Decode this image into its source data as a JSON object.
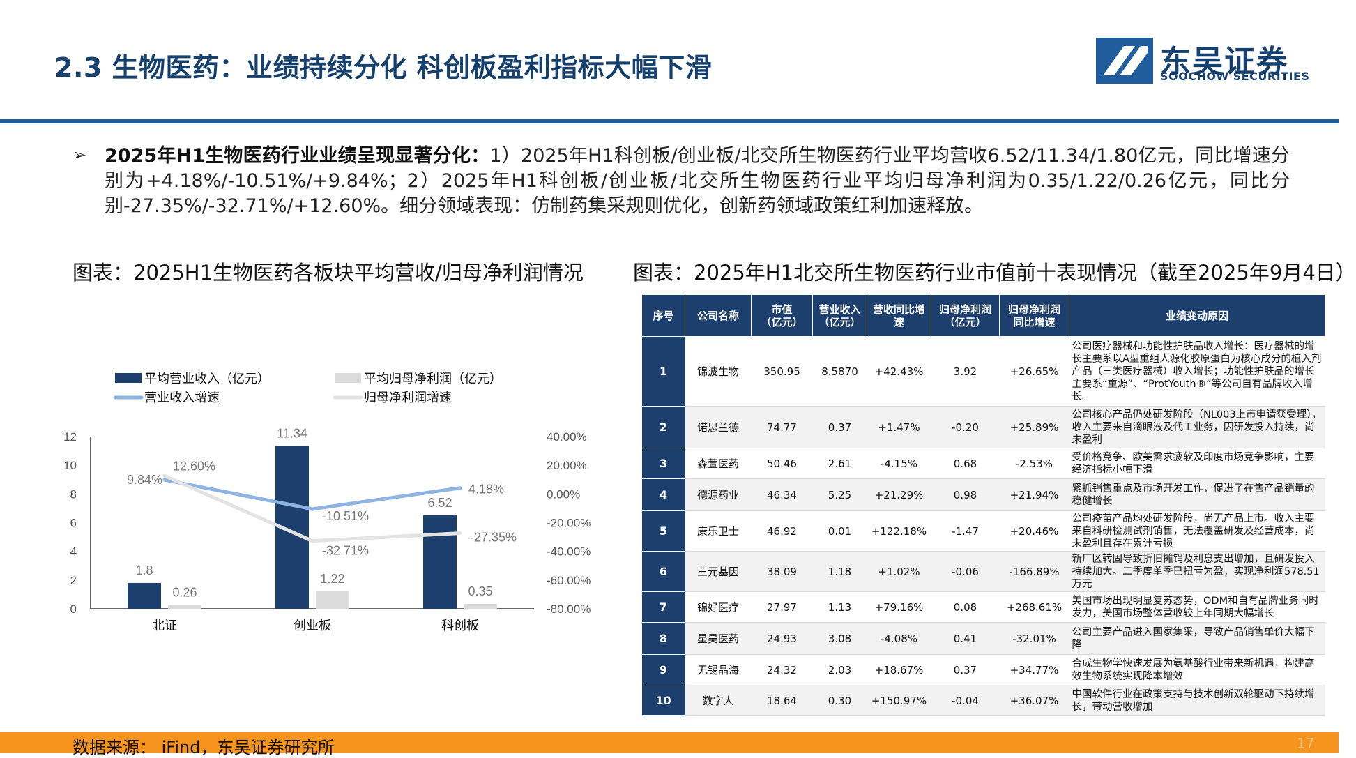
{
  "header": {
    "title": "2.3 生物医药：业绩持续分化 科创板盈利指标大幅下滑",
    "logo_cn": "东吴证券",
    "logo_en": "SOOCHOW SECURITIES"
  },
  "summary": {
    "bullet": "➢",
    "lead": "2025年H1生物医药行业业绩呈现显著分化：",
    "text": "1）2025年H1科创板/创业板/北交所生物医药行业平均营收6.52/11.34/1.80亿元，同比增速分别为+4.18%/-10.51%/+9.84%；2）2025年H1科创板/创业板/北交所生物医药行业平均归母净利润为0.35/1.22/0.26亿元，同比分别-27.35%/-32.71%/+12.60%。细分领域表现：仿制药集采规则优化，创新药领域政策红利加速释放。"
  },
  "left_title": "图表：2025H1生物医药各板块平均营收/归母净利润情况",
  "right_title": "图表：2025年H1北交所生物医药行业市值前十表现情况（截至2025年9月4日）",
  "chart_data": {
    "type": "bar",
    "categories": [
      "北证",
      "创业板",
      "科创板"
    ],
    "series": [
      {
        "name": "平均营业收入（亿元）",
        "kind": "bar",
        "axis": "left",
        "color": "#1c3f6e",
        "values": [
          1.8,
          11.34,
          6.52
        ],
        "labels": [
          "1.8",
          "11.34",
          "6.52"
        ]
      },
      {
        "name": "平均归母净利润（亿元）",
        "kind": "bar",
        "axis": "left",
        "color": "#dcdcdc",
        "values": [
          0.26,
          1.22,
          0.35
        ],
        "labels": [
          "0.26",
          "1.22",
          "0.35"
        ]
      },
      {
        "name": "营业收入增速",
        "kind": "line",
        "axis": "right",
        "color": "#8db4e2",
        "values": [
          9.84,
          -10.51,
          4.18
        ],
        "labels": [
          "9.84%",
          "-10.51%",
          "4.18%"
        ]
      },
      {
        "name": "归母净利润增速",
        "kind": "line",
        "axis": "right",
        "color": "#e3e3e3",
        "values": [
          12.6,
          -32.71,
          -27.35
        ],
        "labels": [
          "12.60%",
          "-32.71%",
          "-27.35%"
        ]
      }
    ],
    "ylim": [
      0,
      12
    ],
    "yticks": [
      "0",
      "2",
      "4",
      "6",
      "8",
      "10",
      "12"
    ],
    "y2lim": [
      -80,
      40
    ],
    "y2ticks": [
      "-80.00%",
      "-60.00%",
      "-40.00%",
      "-20.00%",
      "0.00%",
      "20.00%",
      "40.00%"
    ],
    "legend": "top",
    "grid": false
  },
  "table": {
    "headers": [
      "序号",
      "公司名称",
      "市值\n（亿元）",
      "营业收入\n（亿元）",
      "营收同比增\n速",
      "归母净利润\n（亿元）",
      "归母净利润\n同比增速",
      "业绩变动原因"
    ],
    "rows": [
      [
        "1",
        "锦波生物",
        "350.95",
        "8.5870",
        "+42.43%",
        "3.92",
        "+26.65%",
        "公司医疗器械和功能性护肤品收入增长：医疗器械的增长主要系以A型重组人源化胶原蛋白为核心成分的植入剂产品（三类医疗器械）收入增长；功能性护肤品的增长主要系“重源”、“ProtYouth®”等公司自有品牌收入增长。"
      ],
      [
        "2",
        "诺思兰德",
        "74.77",
        "0.37",
        "+1.47%",
        "-0.20",
        "+25.89%",
        "公司核心产品仍处研发阶段（NL003上市申请获受理），收入主要来自滴眼液及代工业务，因研发投入持续，尚未盈利"
      ],
      [
        "3",
        "森萱医药",
        "50.46",
        "2.61",
        "-4.15%",
        "0.68",
        "-2.53%",
        "受价格竞争、欧美需求疲软及印度市场竞争影响，主要经济指标小幅下滑"
      ],
      [
        "4",
        "德源药业",
        "46.34",
        "5.25",
        "+21.29%",
        "0.98",
        "+21.94%",
        "紧抓销售重点及市场开发工作，促进了在售产品销量的稳健增长"
      ],
      [
        "5",
        "康乐卫士",
        "46.92",
        "0.01",
        "+122.18%",
        "-1.47",
        "+20.46%",
        "公司疫苗产品均处研发阶段，尚无产品上市。收入主要来自科研检测试剂销售，无法覆盖研发及经营成本，尚未盈利且存在累计亏损"
      ],
      [
        "6",
        "三元基因",
        "38.09",
        "1.18",
        "+1.02%",
        "-0.06",
        "-166.89%",
        "新厂区转固导致折旧摊销及利息支出增加，且研发投入持续加大。二季度单季已扭亏为盈，实现净利润578.51万元"
      ],
      [
        "7",
        "锦好医疗",
        "27.97",
        "1.13",
        "+79.16%",
        "0.08",
        "+268.61%",
        "美国市场出现明显复苏态势，ODM和自有品牌业务同时发力，美国市场整体营收较上年同期大幅增长"
      ],
      [
        "8",
        "星昊医药",
        "24.93",
        "3.08",
        "-4.08%",
        "0.41",
        "-32.01%",
        "公司主要产品进入国家集采，导致产品销售单价大幅下降"
      ],
      [
        "9",
        "无锡晶海",
        "24.32",
        "2.03",
        "+18.67%",
        "0.37",
        "+34.77%",
        "合成生物学快速发展为氨基酸行业带来新机遇，构建高效生物系统实现降本增效"
      ],
      [
        "10",
        "数字人",
        "18.64",
        "0.30",
        "+150.97%",
        "-0.04",
        "+36.07%",
        "中国软件行业在政策支持与技术创新双轮驱动下持续增长，带动营收增加"
      ]
    ]
  },
  "footer": {
    "source": "数据来源： iFind，东吴证券研究所",
    "page": "17"
  }
}
